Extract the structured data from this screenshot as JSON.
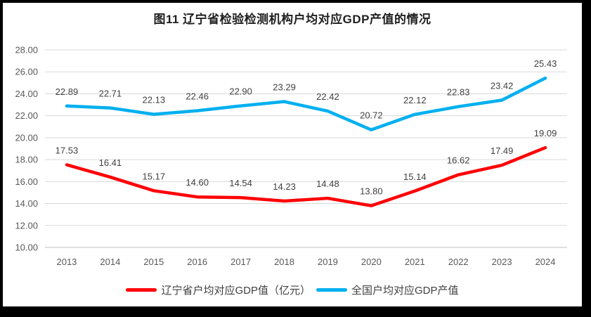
{
  "title": "图11 辽宁省检验检测机构户均对应GDP产值的情况",
  "colors": {
    "liaoning": "#ff0000",
    "national": "#00b0f0",
    "gridline": "#d9d9d9",
    "axis_line": "#bfbfbf",
    "axis_text": "#595959",
    "data_label_text": "#404040",
    "title_text": "#1f1f1f",
    "frame": "#000000",
    "background": "#ffffff"
  },
  "chart_data": {
    "type": "line",
    "title": "图11 辽宁省检验检测机构户均对应GDP产值的情况",
    "categories": [
      "2013",
      "2014",
      "2015",
      "2016",
      "2017",
      "2018",
      "2019",
      "2020",
      "2021",
      "2022",
      "2023",
      "2024"
    ],
    "series": [
      {
        "key": "liaoning",
        "name": "辽宁省户均对应GDP值（亿元）",
        "color": "#ff0000",
        "values": [
          17.53,
          16.41,
          15.17,
          14.6,
          14.54,
          14.23,
          14.48,
          13.8,
          15.14,
          16.62,
          17.49,
          19.09
        ]
      },
      {
        "key": "national",
        "name": "全国户均对应GDP产值",
        "color": "#00b0f0",
        "values": [
          22.89,
          22.71,
          22.13,
          22.46,
          22.9,
          23.29,
          22.42,
          20.72,
          22.12,
          22.83,
          23.42,
          25.43
        ]
      }
    ],
    "xlabel": "",
    "ylabel": "",
    "ylim": [
      10,
      28
    ],
    "y_tick_step": 2,
    "y_tick_labels": [
      "10.00",
      "12.00",
      "14.00",
      "16.00",
      "18.00",
      "20.00",
      "22.00",
      "24.00",
      "26.00",
      "28.00"
    ],
    "grid": true,
    "data_labels": true,
    "data_label_decimals": 2,
    "legend_position": "bottom"
  }
}
